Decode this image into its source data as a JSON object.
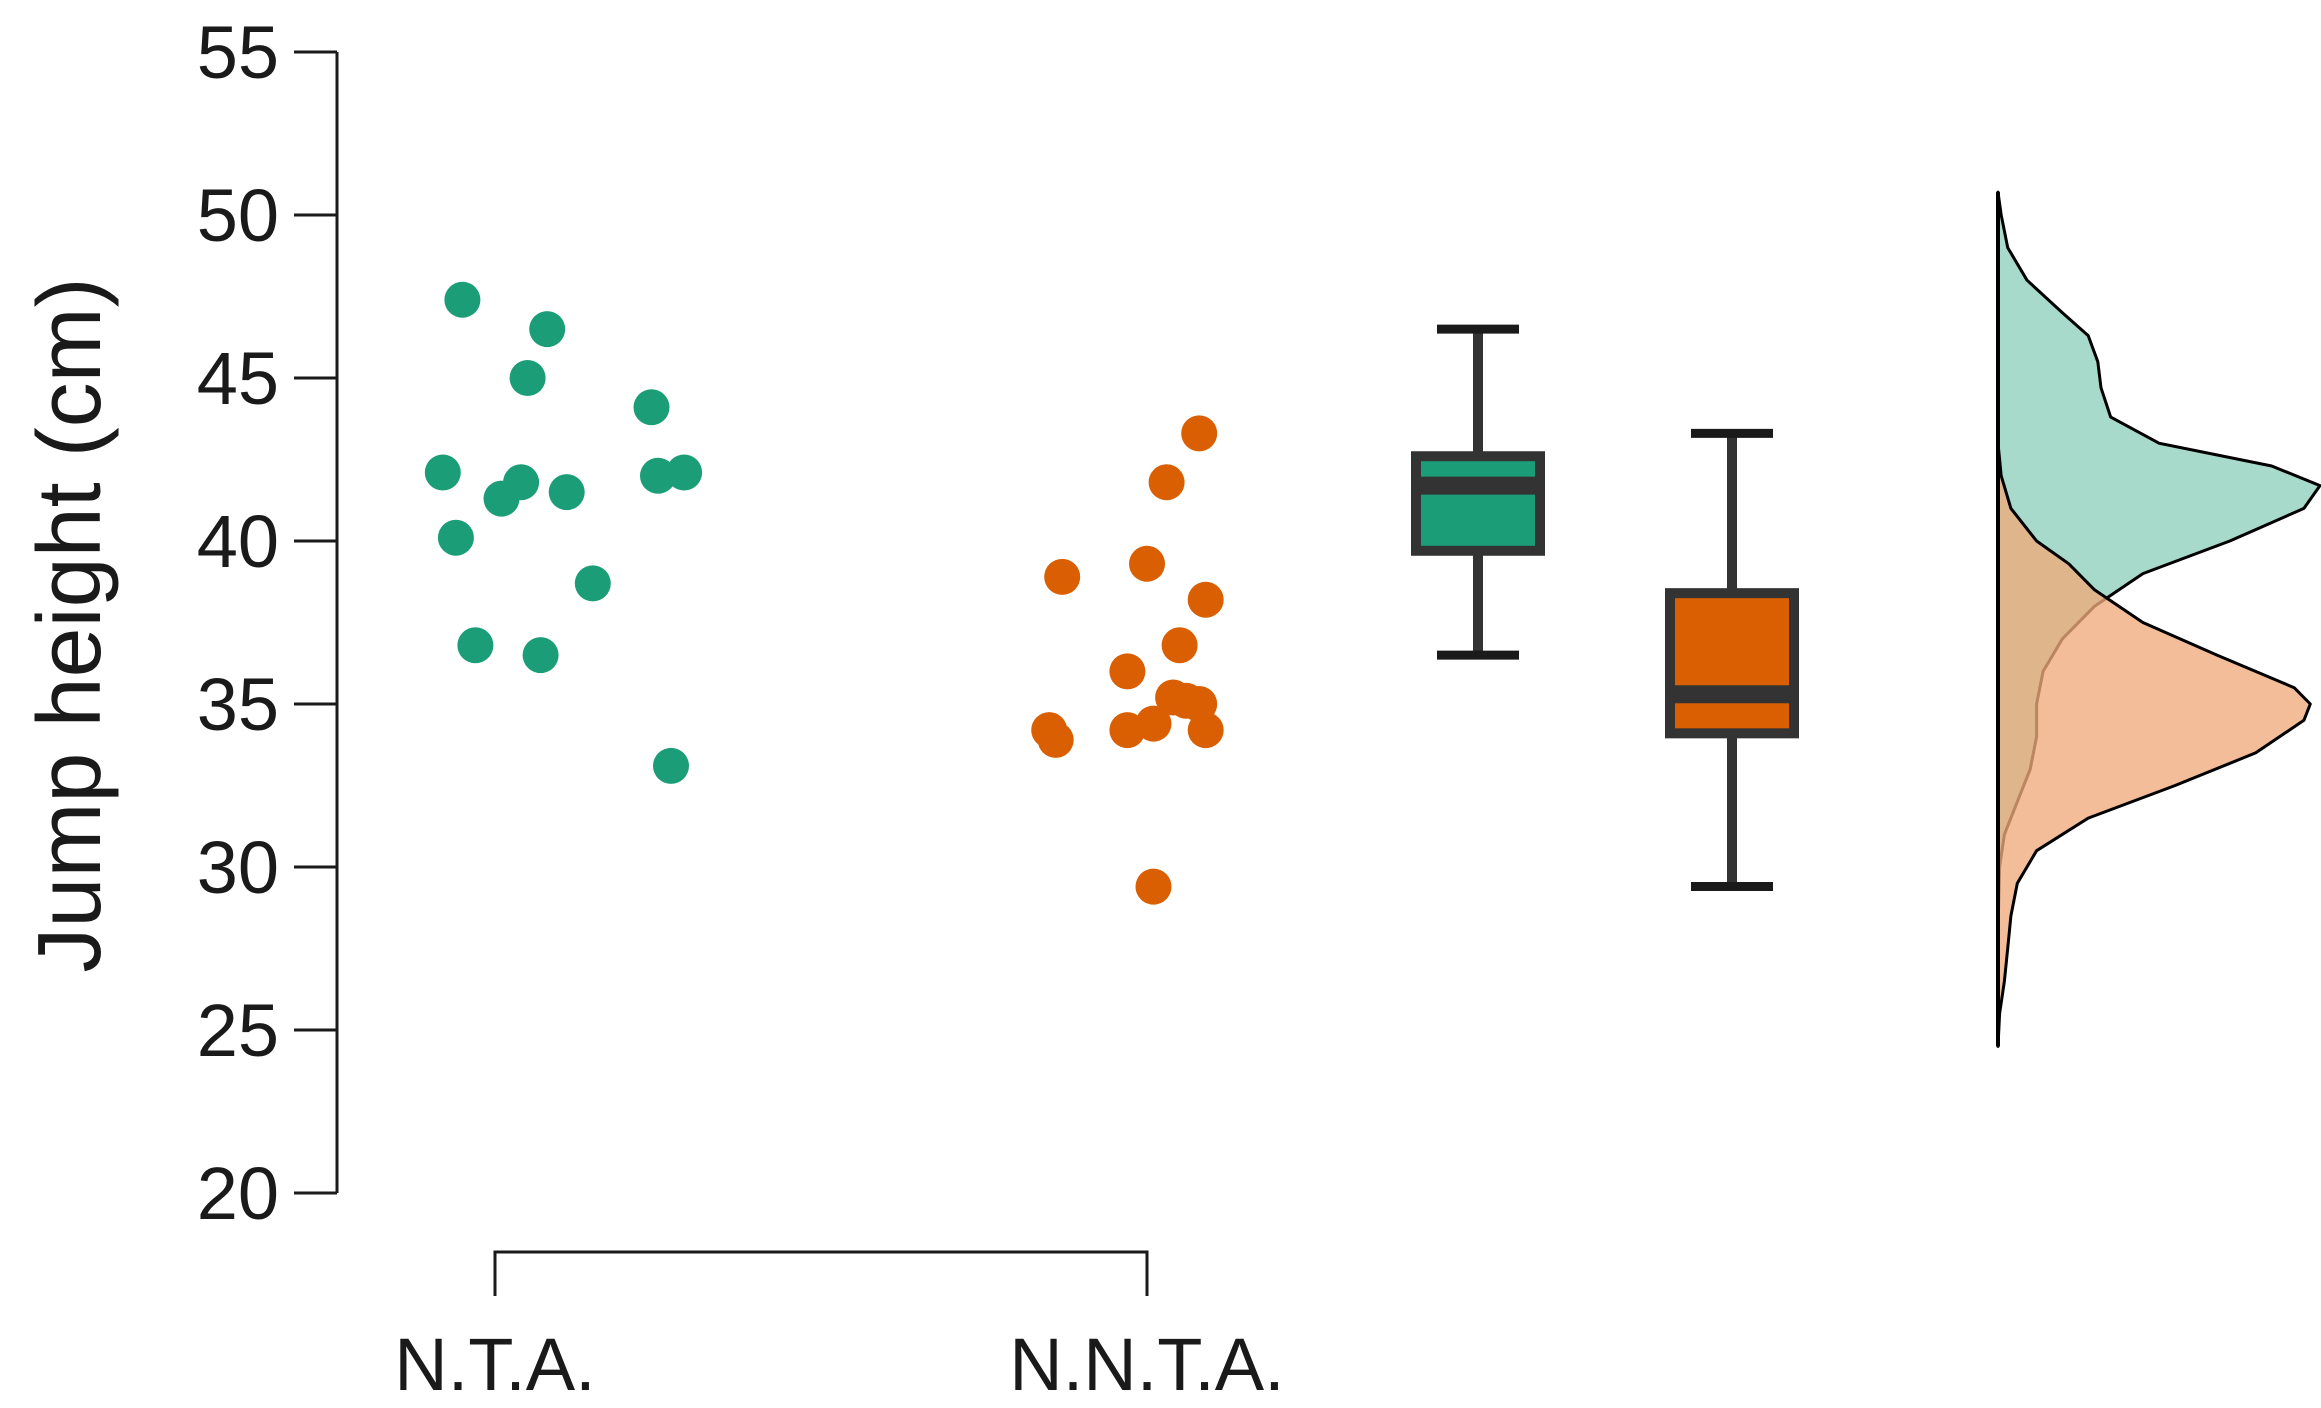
{
  "chart_data": {
    "type": "raincloud",
    "ylabel": "Jump height (cm)",
    "ylim": [
      20,
      55
    ],
    "yticks": [
      20,
      25,
      30,
      35,
      40,
      45,
      50,
      55
    ],
    "yticks_text": [
      "20",
      "25",
      "30",
      "35",
      "40",
      "45",
      "50",
      "55"
    ],
    "categories": [
      "N.T.A.",
      "N.N.T.A."
    ],
    "grid": false,
    "series": [
      {
        "color": "#1b9e77",
        "density_color": "#8ecfbb",
        "points": [
          {
            "x": 0.95,
            "y": 47.4
          },
          {
            "x": 1.08,
            "y": 46.5
          },
          {
            "x": 1.05,
            "y": 45.0
          },
          {
            "x": 1.24,
            "y": 44.1
          },
          {
            "x": 0.92,
            "y": 42.1
          },
          {
            "x": 1.25,
            "y": 42.0
          },
          {
            "x": 1.29,
            "y": 42.1
          },
          {
            "x": 1.04,
            "y": 41.8
          },
          {
            "x": 1.01,
            "y": 41.3
          },
          {
            "x": 1.11,
            "y": 41.5
          },
          {
            "x": 0.94,
            "y": 40.1
          },
          {
            "x": 1.15,
            "y": 38.7
          },
          {
            "x": 0.97,
            "y": 36.8
          },
          {
            "x": 1.07,
            "y": 36.5
          },
          {
            "x": 1.27,
            "y": 33.1
          }
        ],
        "box": {
          "min": 36.5,
          "q1": 39.7,
          "median": 41.7,
          "q3": 42.6,
          "max": 46.5
        },
        "density": [
          [
            24.5,
            0.0
          ],
          [
            26.0,
            0.0
          ],
          [
            28.0,
            0.0
          ],
          [
            30.0,
            0.005
          ],
          [
            31.0,
            0.02
          ],
          [
            32.0,
            0.06
          ],
          [
            33.0,
            0.1
          ],
          [
            34.0,
            0.12
          ],
          [
            35.0,
            0.12
          ],
          [
            36.0,
            0.14
          ],
          [
            37.0,
            0.2
          ],
          [
            38.0,
            0.3
          ],
          [
            39.0,
            0.45
          ],
          [
            40.0,
            0.72
          ],
          [
            41.0,
            0.95
          ],
          [
            41.7,
            1.0
          ],
          [
            42.3,
            0.85
          ],
          [
            43.0,
            0.5
          ],
          [
            43.8,
            0.35
          ],
          [
            44.7,
            0.32
          ],
          [
            45.5,
            0.31
          ],
          [
            46.3,
            0.28
          ],
          [
            47.0,
            0.2
          ],
          [
            48.0,
            0.09
          ],
          [
            49.0,
            0.03
          ],
          [
            50.0,
            0.01
          ],
          [
            50.7,
            0.0
          ]
        ]
      },
      {
        "color": "#d95f02",
        "density_color": "#eeaa7b",
        "points": [
          {
            "x": 2.08,
            "y": 43.3
          },
          {
            "x": 2.03,
            "y": 41.8
          },
          {
            "x": 1.87,
            "y": 38.9
          },
          {
            "x": 2.0,
            "y": 39.3
          },
          {
            "x": 2.09,
            "y": 38.2
          },
          {
            "x": 2.05,
            "y": 36.8
          },
          {
            "x": 1.97,
            "y": 36.0
          },
          {
            "x": 2.04,
            "y": 35.2
          },
          {
            "x": 2.08,
            "y": 35.0
          },
          {
            "x": 2.06,
            "y": 35.1
          },
          {
            "x": 2.01,
            "y": 34.4
          },
          {
            "x": 1.85,
            "y": 34.2
          },
          {
            "x": 1.86,
            "y": 33.9
          },
          {
            "x": 1.97,
            "y": 34.2
          },
          {
            "x": 2.09,
            "y": 34.2
          },
          {
            "x": 2.01,
            "y": 29.4
          }
        ],
        "box": {
          "min": 29.4,
          "q1": 34.1,
          "median": 35.3,
          "q3": 38.4,
          "max": 43.3
        },
        "density": [
          [
            24.5,
            0.0
          ],
          [
            25.5,
            0.005
          ],
          [
            26.5,
            0.02
          ],
          [
            27.5,
            0.03
          ],
          [
            28.5,
            0.04
          ],
          [
            29.5,
            0.06
          ],
          [
            30.5,
            0.12
          ],
          [
            31.5,
            0.28
          ],
          [
            32.5,
            0.55
          ],
          [
            33.5,
            0.8
          ],
          [
            34.5,
            0.95
          ],
          [
            35.0,
            0.97
          ],
          [
            35.5,
            0.92
          ],
          [
            36.5,
            0.68
          ],
          [
            37.5,
            0.45
          ],
          [
            38.5,
            0.3
          ],
          [
            39.3,
            0.22
          ],
          [
            40.0,
            0.12
          ],
          [
            41.0,
            0.04
          ],
          [
            42.0,
            0.01
          ],
          [
            43.0,
            0.0
          ],
          [
            44.5,
            0.0
          ]
        ]
      }
    ]
  }
}
